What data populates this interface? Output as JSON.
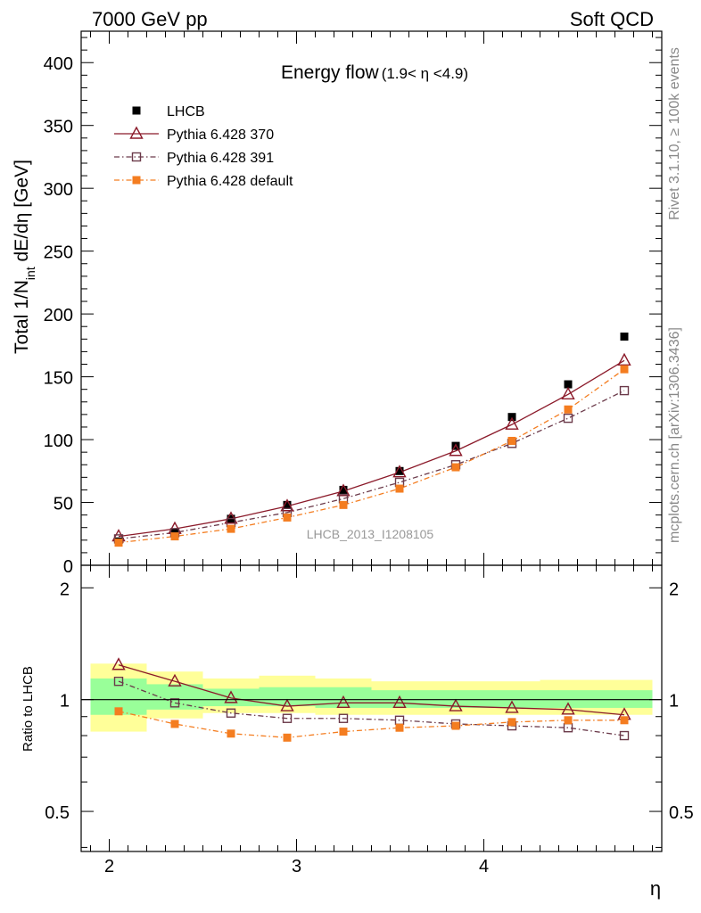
{
  "header": {
    "left": "7000 GeV pp",
    "right": "Soft QCD"
  },
  "chart_data": {
    "type": "scatter",
    "title": "Energy flow",
    "title_range": "(1.9< η <4.9)",
    "xlabel": "η",
    "ylabel_main": "Total 1/N",
    "ylabel_sub": "int",
    "ylabel_tail": " dE/dη [GeV]",
    "ratio_ylabel": "Ratio to LHCB",
    "analysis_label": "LHCB_2013_I1208105",
    "side_label_top": "Rivet 3.1.10, ≥ 100k events",
    "side_label_bottom": "mcplots.cern.ch [arXiv:1306.3436]",
    "xlim": [
      1.85,
      4.95
    ],
    "ylim": [
      0,
      425
    ],
    "ratio_ylim": [
      0.39,
      2.3
    ],
    "x_ticks": [
      "2",
      "3",
      "4"
    ],
    "y_ticks": [
      "0",
      "50",
      "100",
      "150",
      "200",
      "250",
      "300",
      "350",
      "400"
    ],
    "ratio_ticks": [
      "0.5",
      "1",
      "2"
    ],
    "x": [
      2.05,
      2.35,
      2.65,
      2.95,
      3.25,
      3.55,
      3.85,
      4.15,
      4.45,
      4.75
    ],
    "series": [
      {
        "name": "LHCB",
        "color": "#000000",
        "marker": "square-filled",
        "line": "none",
        "values": [
          19,
          26,
          37,
          48,
          60,
          75,
          95,
          118,
          144,
          182
        ]
      },
      {
        "name": "Pythia 6.428 370",
        "color": "#8b1a2a",
        "marker": "triangle-open",
        "line": "solid",
        "values": [
          23,
          29,
          37,
          47,
          59,
          74,
          91,
          112,
          136,
          163
        ]
      },
      {
        "name": "Pythia 6.428 391",
        "color": "#6b3a4a",
        "marker": "square-open",
        "line": "dashdot",
        "values": [
          21,
          26,
          34,
          42,
          53,
          66,
          80,
          97,
          117,
          139
        ]
      },
      {
        "name": "Pythia 6.428 default",
        "color": "#f47d20",
        "marker": "square-filled",
        "line": "dashdot",
        "values": [
          18,
          23,
          29,
          38,
          48,
          61,
          78,
          99,
          124,
          156
        ]
      }
    ],
    "ratios": [
      [
        1.24,
        1.12,
        1.01,
        0.96,
        0.98,
        0.98,
        0.96,
        0.95,
        0.94,
        0.91
      ],
      [
        1.12,
        0.98,
        0.92,
        0.89,
        0.89,
        0.88,
        0.86,
        0.85,
        0.84,
        0.8
      ],
      [
        0.93,
        0.86,
        0.81,
        0.79,
        0.82,
        0.84,
        0.85,
        0.87,
        0.88,
        0.88
      ]
    ],
    "band_edges": [
      1.9,
      2.2,
      2.5,
      2.8,
      3.1,
      3.4,
      3.7,
      4.0,
      4.3,
      4.6,
      4.9
    ],
    "band_yellow": [
      [
        0.82,
        1.25
      ],
      [
        0.89,
        1.19
      ],
      [
        0.92,
        1.14
      ],
      [
        0.92,
        1.16
      ],
      [
        0.91,
        1.14
      ],
      [
        0.91,
        1.12
      ],
      [
        0.91,
        1.12
      ],
      [
        0.91,
        1.12
      ],
      [
        0.91,
        1.13
      ],
      [
        0.91,
        1.13
      ]
    ],
    "band_green": [
      [
        0.91,
        1.14
      ],
      [
        0.94,
        1.1
      ],
      [
        0.96,
        1.07
      ],
      [
        0.96,
        1.08
      ],
      [
        0.95,
        1.08
      ],
      [
        0.95,
        1.06
      ],
      [
        0.95,
        1.06
      ],
      [
        0.95,
        1.06
      ],
      [
        0.95,
        1.06
      ],
      [
        0.95,
        1.06
      ]
    ],
    "colors": {
      "yellow_band": "#ffff99",
      "green_band": "#99ff99"
    }
  }
}
